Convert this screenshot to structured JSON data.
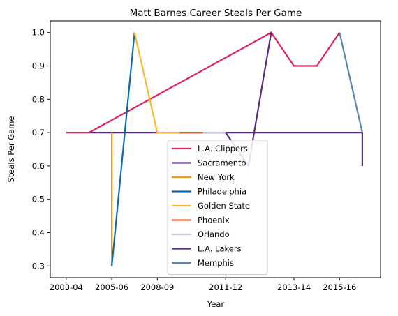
{
  "chart_data": {
    "type": "line",
    "title": "Matt Barnes Career Steals Per Game",
    "xlabel": "Year",
    "ylabel": "Steals Per Game",
    "x_ticks": [
      "2003-04",
      "2005-06",
      "2008-09",
      "2011-12",
      "2013-14",
      "2015-16"
    ],
    "y_ticks": [
      "0.3",
      "0.4",
      "0.5",
      "0.6",
      "0.7",
      "0.8",
      "0.9",
      "1.0"
    ],
    "xlim": [
      -0.7,
      13.8
    ],
    "ylim": [
      0.265,
      1.035
    ],
    "grid": false,
    "legend_position": "lower-center",
    "series": [
      {
        "name": "L.A. Clippers",
        "color": "#E0225C",
        "points": [
          [
            0,
            0.7
          ],
          [
            1,
            0.7
          ],
          [
            9,
            1.0
          ],
          [
            10,
            0.9
          ],
          [
            11,
            0.9
          ],
          [
            12,
            1.0
          ]
        ]
      },
      {
        "name": "Sacramento",
        "color": "#5B2A86",
        "points": [
          [
            1,
            0.7
          ],
          [
            2,
            0.7
          ],
          [
            13,
            0.7
          ],
          [
            13,
            0.6
          ]
        ]
      },
      {
        "name": "New York",
        "color": "#F29A1A",
        "points": [
          [
            2,
            0.7
          ],
          [
            2,
            0.3
          ]
        ]
      },
      {
        "name": "Philadelphia",
        "color": "#0A6BB5",
        "points": [
          [
            2,
            0.3
          ],
          [
            3,
            1.0
          ]
        ]
      },
      {
        "name": "Golden State",
        "color": "#FBB829",
        "points": [
          [
            3,
            1.0
          ],
          [
            4,
            0.7
          ],
          [
            5,
            0.7
          ]
        ]
      },
      {
        "name": "Phoenix",
        "color": "#E1623A",
        "points": [
          [
            5,
            0.7
          ],
          [
            6,
            0.7
          ]
        ]
      },
      {
        "name": "Orlando",
        "color": "#C0CAD8",
        "points": [
          [
            6,
            0.7
          ],
          [
            7,
            0.7
          ]
        ]
      },
      {
        "name": "L.A. Lakers",
        "color": "#572A84",
        "points": [
          [
            7,
            0.7
          ],
          [
            8,
            0.6
          ],
          [
            9,
            1.0
          ]
        ]
      },
      {
        "name": "Memphis",
        "color": "#5D85B8",
        "points": [
          [
            12,
            1.0
          ],
          [
            13,
            0.7
          ]
        ]
      }
    ]
  }
}
